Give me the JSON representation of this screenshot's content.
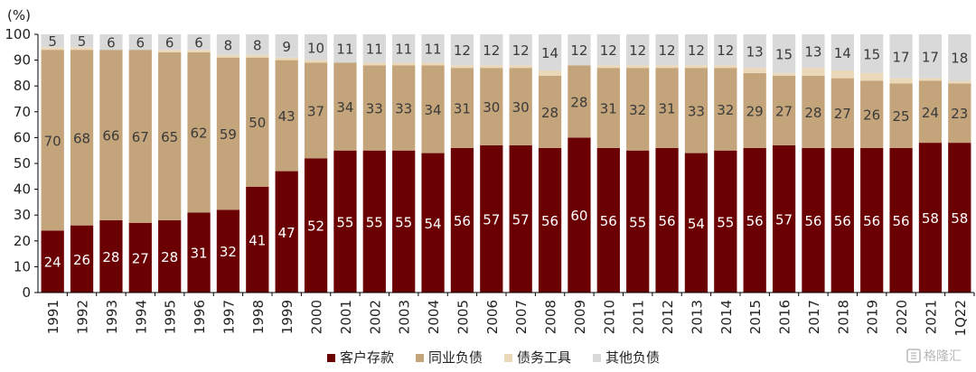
{
  "chart_data": {
    "type": "bar",
    "stacked": true,
    "y_unit": "(%)",
    "ylim": [
      0,
      100
    ],
    "yticks": [
      0,
      10,
      20,
      30,
      40,
      50,
      60,
      70,
      80,
      90,
      100
    ],
    "categories": [
      "1991",
      "1992",
      "1993",
      "1994",
      "1995",
      "1996",
      "1997",
      "1998",
      "1999",
      "2000",
      "2001",
      "2002",
      "2003",
      "2004",
      "2005",
      "2006",
      "2007",
      "2008",
      "2009",
      "2010",
      "2011",
      "2012",
      "2013",
      "2014",
      "2015",
      "2016",
      "2017",
      "2018",
      "2019",
      "2020",
      "2021",
      "1Q22"
    ],
    "series": [
      {
        "name": "客户存款",
        "color": "#6b0003",
        "label_color": "#ffffff",
        "values": [
          24,
          26,
          28,
          27,
          28,
          31,
          32,
          41,
          47,
          52,
          55,
          55,
          55,
          54,
          56,
          57,
          57,
          56,
          60,
          56,
          55,
          56,
          54,
          55,
          56,
          57,
          56,
          56,
          56,
          56,
          58,
          58
        ]
      },
      {
        "name": "同业负债",
        "color": "#c4a47a",
        "label_color": "#3a3a3a",
        "values": [
          70,
          68,
          66,
          67,
          65,
          62,
          59,
          50,
          43,
          37,
          34,
          33,
          33,
          34,
          31,
          30,
          30,
          28,
          28,
          31,
          32,
          31,
          33,
          32,
          29,
          27,
          28,
          27,
          26,
          25,
          24,
          23
        ]
      },
      {
        "name": "债务工具",
        "color": "#ead8b8",
        "label_color": "#3a3a3a",
        "values": [
          1,
          1,
          0,
          0,
          1,
          1,
          1,
          1,
          1,
          1,
          0,
          1,
          1,
          1,
          1,
          1,
          1,
          2,
          0,
          1,
          1,
          1,
          1,
          1,
          2,
          1,
          3,
          3,
          3,
          2,
          1,
          1
        ]
      },
      {
        "name": "其他负债",
        "color": "#d9d9d9",
        "label_color": "#3a3a3a",
        "values": [
          5,
          5,
          6,
          6,
          6,
          6,
          8,
          8,
          9,
          10,
          11,
          11,
          11,
          11,
          12,
          12,
          12,
          14,
          12,
          12,
          12,
          12,
          12,
          12,
          13,
          15,
          13,
          14,
          15,
          17,
          17,
          18
        ]
      }
    ],
    "labeled_series": [
      "客户存款",
      "同业负债",
      "其他负债"
    ],
    "legend_position": "bottom",
    "grid": false
  },
  "watermark": {
    "text": "格隆汇"
  }
}
